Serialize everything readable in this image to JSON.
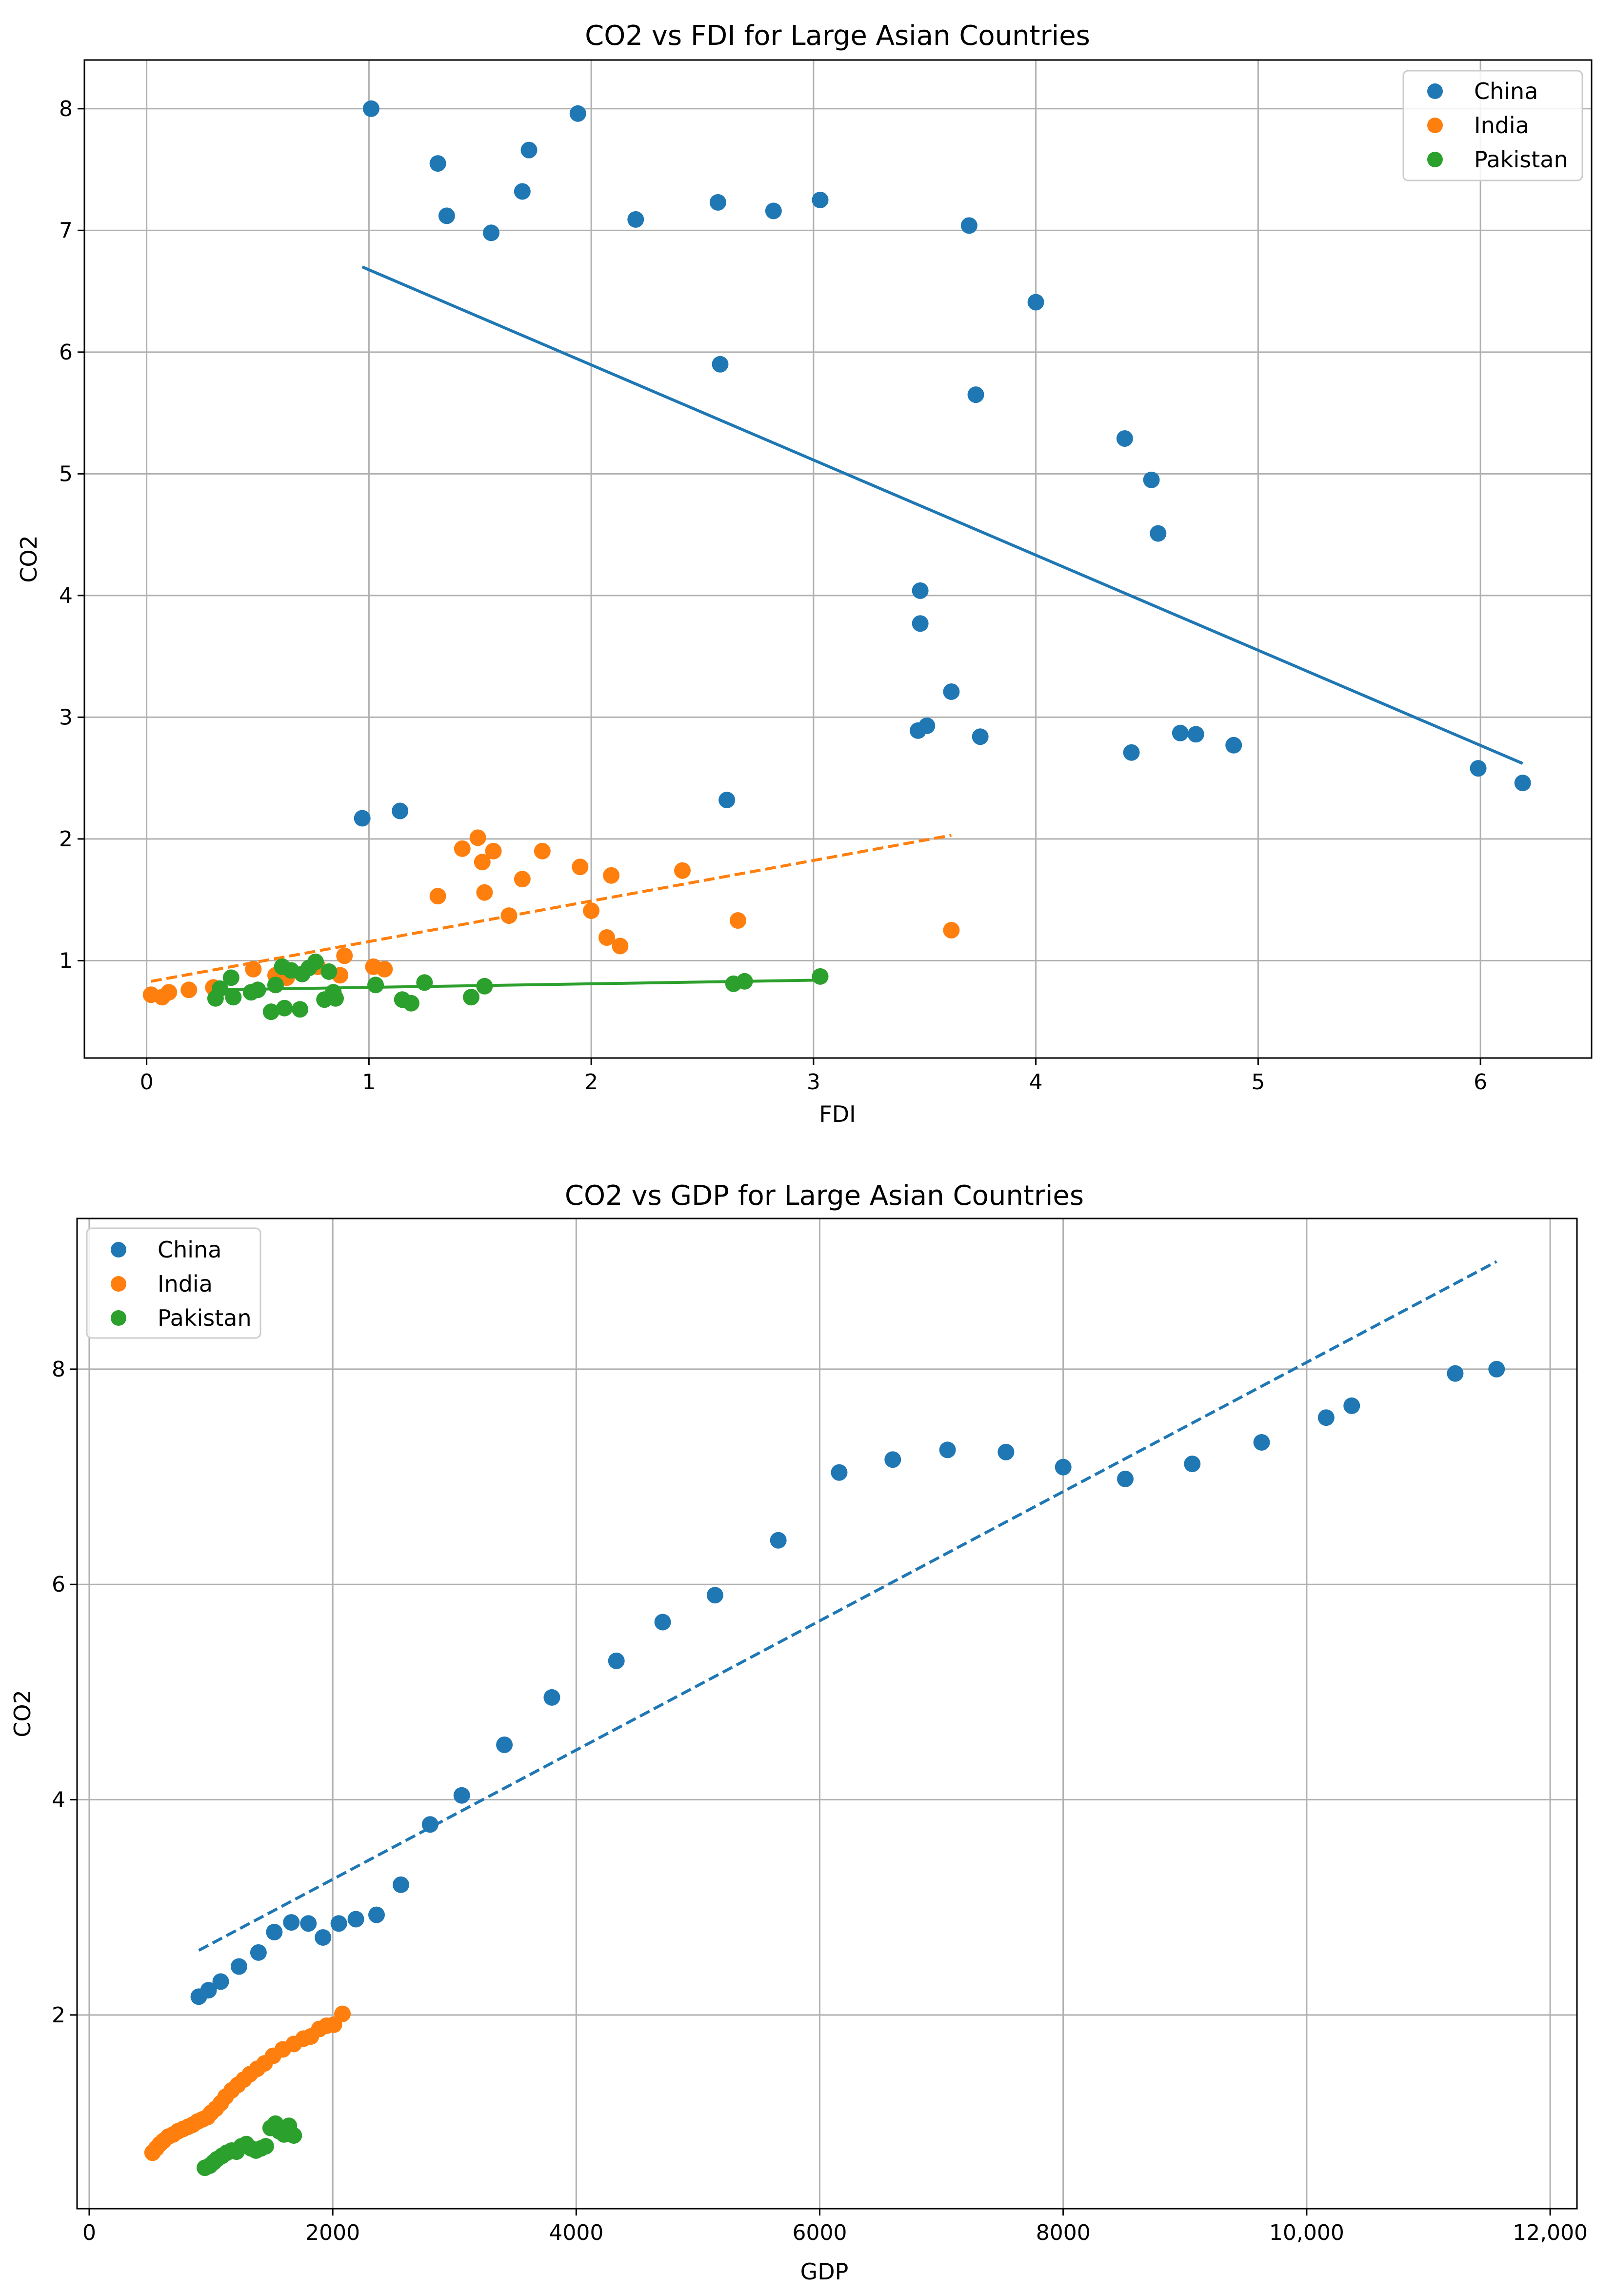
{
  "chart_data": [
    {
      "type": "scatter",
      "title": "CO2 vs FDI for Large Asian Countries",
      "xlabel": "FDI",
      "ylabel": "CO2",
      "xlim": [
        -0.28,
        6.5
      ],
      "ylim": [
        0.2,
        8.4
      ],
      "xticks": [
        0,
        1,
        2,
        3,
        4,
        5,
        6
      ],
      "xtick_labels": [
        "0",
        "1",
        "2",
        "3",
        "4",
        "5",
        "6"
      ],
      "yticks": [
        1,
        2,
        3,
        4,
        5,
        6,
        7,
        8
      ],
      "ytick_labels": [
        "1",
        "2",
        "3",
        "4",
        "5",
        "6",
        "7",
        "8"
      ],
      "grid": true,
      "legend_position": "top-right",
      "series": [
        {
          "name": "China",
          "color": "#1f77b4",
          "x": [
            1.01,
            1.31,
            1.35,
            1.55,
            1.69,
            1.72,
            1.94,
            2.2,
            2.57,
            2.82,
            3.03,
            3.7,
            2.58,
            3.73,
            4.0,
            4.4,
            4.52,
            4.55,
            3.48,
            3.48,
            3.62,
            3.47,
            3.51,
            3.75,
            4.43,
            4.65,
            4.72,
            4.89,
            5.99,
            6.19,
            0.97,
            1.14,
            2.61
          ],
          "y": [
            8.0,
            7.55,
            7.12,
            6.98,
            7.32,
            7.66,
            7.96,
            7.09,
            7.23,
            7.16,
            7.25,
            7.04,
            5.9,
            5.65,
            6.41,
            5.29,
            4.95,
            4.51,
            4.04,
            3.77,
            3.21,
            2.89,
            2.93,
            2.84,
            2.71,
            2.87,
            2.86,
            2.77,
            2.58,
            2.46,
            2.17,
            2.23,
            2.32
          ],
          "trend": {
            "x": [
              0.97,
              6.19
            ],
            "y": [
              6.7,
              2.62
            ],
            "style": "solid"
          }
        },
        {
          "name": "India",
          "color": "#ff7f0e",
          "x": [
            0.02,
            0.07,
            0.1,
            0.19,
            0.3,
            0.48,
            0.58,
            0.63,
            0.77,
            0.87,
            0.89,
            1.02,
            1.07,
            1.31,
            1.42,
            1.49,
            1.51,
            1.52,
            1.56,
            1.63,
            1.69,
            1.78,
            1.95,
            2.0,
            2.07,
            2.09,
            2.13,
            2.41,
            2.66,
            3.62
          ],
          "y": [
            0.72,
            0.7,
            0.74,
            0.76,
            0.78,
            0.93,
            0.88,
            0.86,
            0.95,
            0.88,
            1.04,
            0.95,
            0.93,
            1.53,
            1.92,
            2.01,
            1.81,
            1.56,
            1.9,
            1.37,
            1.67,
            1.9,
            1.77,
            1.41,
            1.19,
            1.7,
            1.12,
            1.74,
            1.33,
            1.25
          ],
          "trend": {
            "x": [
              0.02,
              3.62
            ],
            "y": [
              0.83,
              2.03
            ],
            "style": "dashed"
          }
        },
        {
          "name": "Pakistan",
          "color": "#2ca02c",
          "x": [
            0.31,
            0.33,
            0.38,
            0.39,
            0.47,
            0.5,
            0.56,
            0.58,
            0.61,
            0.62,
            0.65,
            0.69,
            0.7,
            0.73,
            0.76,
            0.8,
            0.82,
            0.84,
            0.85,
            1.03,
            1.15,
            1.19,
            1.25,
            1.46,
            1.52,
            2.64,
            2.69,
            3.03
          ],
          "y": [
            0.69,
            0.77,
            0.86,
            0.7,
            0.74,
            0.76,
            0.58,
            0.8,
            0.95,
            0.61,
            0.92,
            0.6,
            0.89,
            0.94,
            0.99,
            0.68,
            0.91,
            0.74,
            0.69,
            0.8,
            0.68,
            0.65,
            0.82,
            0.7,
            0.79,
            0.81,
            0.83,
            0.87
          ],
          "trend": {
            "x": [
              0.31,
              3.03
            ],
            "y": [
              0.76,
              0.84
            ],
            "style": "solid"
          }
        }
      ]
    },
    {
      "type": "scatter",
      "title": "CO2 vs GDP for Large Asian Countries",
      "xlabel": "GDP",
      "ylabel": "CO2",
      "xlim": [
        -100,
        12220
      ],
      "ylim": [
        0.2,
        9.4
      ],
      "xticks": [
        0,
        2000,
        4000,
        6000,
        8000,
        10000,
        12000
      ],
      "xtick_labels": [
        "0",
        "2000",
        "4000",
        "6000",
        "8000",
        "10,000",
        "12,000"
      ],
      "yticks": [
        2,
        4,
        6,
        8
      ],
      "ytick_labels": [
        "2",
        "4",
        "6",
        "8"
      ],
      "grid": true,
      "legend_position": "top-left",
      "series": [
        {
          "name": "China",
          "color": "#1f77b4",
          "x": [
            900,
            980,
            1080,
            1230,
            1390,
            1520,
            1660,
            1800,
            1920,
            2050,
            2190,
            2360,
            2560,
            2800,
            3060,
            3410,
            3800,
            4330,
            4710,
            5140,
            5660,
            6160,
            6600,
            7050,
            7530,
            8000,
            8510,
            9060,
            9630,
            10160,
            10370,
            11220,
            11560
          ],
          "y": [
            2.17,
            2.23,
            2.31,
            2.45,
            2.58,
            2.77,
            2.86,
            2.85,
            2.72,
            2.85,
            2.89,
            2.93,
            3.21,
            3.77,
            4.04,
            4.51,
            4.95,
            5.29,
            5.65,
            5.9,
            6.41,
            7.04,
            7.16,
            7.25,
            7.23,
            7.09,
            6.98,
            7.12,
            7.32,
            7.55,
            7.66,
            7.96,
            8.0
          ],
          "trend": {
            "x": [
              900,
              11560
            ],
            "y": [
              2.6,
              9.0
            ],
            "style": "dashed"
          }
        },
        {
          "name": "India",
          "color": "#ff7f0e",
          "x": [
            520,
            550,
            580,
            610,
            650,
            690,
            730,
            770,
            810,
            850,
            890,
            930,
            970,
            1000,
            1040,
            1080,
            1120,
            1170,
            1220,
            1270,
            1320,
            1380,
            1440,
            1510,
            1590,
            1680,
            1760,
            1820,
            1890,
            1950,
            2010,
            2080
          ],
          "y": [
            0.72,
            0.76,
            0.8,
            0.83,
            0.87,
            0.89,
            0.92,
            0.94,
            0.96,
            0.98,
            1.01,
            1.03,
            1.05,
            1.09,
            1.13,
            1.18,
            1.24,
            1.3,
            1.35,
            1.4,
            1.45,
            1.5,
            1.55,
            1.62,
            1.68,
            1.73,
            1.78,
            1.8,
            1.87,
            1.9,
            1.91,
            2.01
          ],
          "trend": null
        },
        {
          "name": "Pakistan",
          "color": "#2ca02c",
          "x": [
            950,
            990,
            1020,
            1050,
            1090,
            1130,
            1170,
            1210,
            1250,
            1290,
            1330,
            1370,
            1410,
            1450,
            1490,
            1530,
            1560,
            1600,
            1640,
            1680
          ],
          "y": [
            0.58,
            0.6,
            0.63,
            0.66,
            0.69,
            0.72,
            0.74,
            0.73,
            0.78,
            0.8,
            0.76,
            0.74,
            0.76,
            0.78,
            0.95,
            0.99,
            0.92,
            0.89,
            0.97,
            0.88
          ],
          "trend": null
        }
      ]
    }
  ]
}
